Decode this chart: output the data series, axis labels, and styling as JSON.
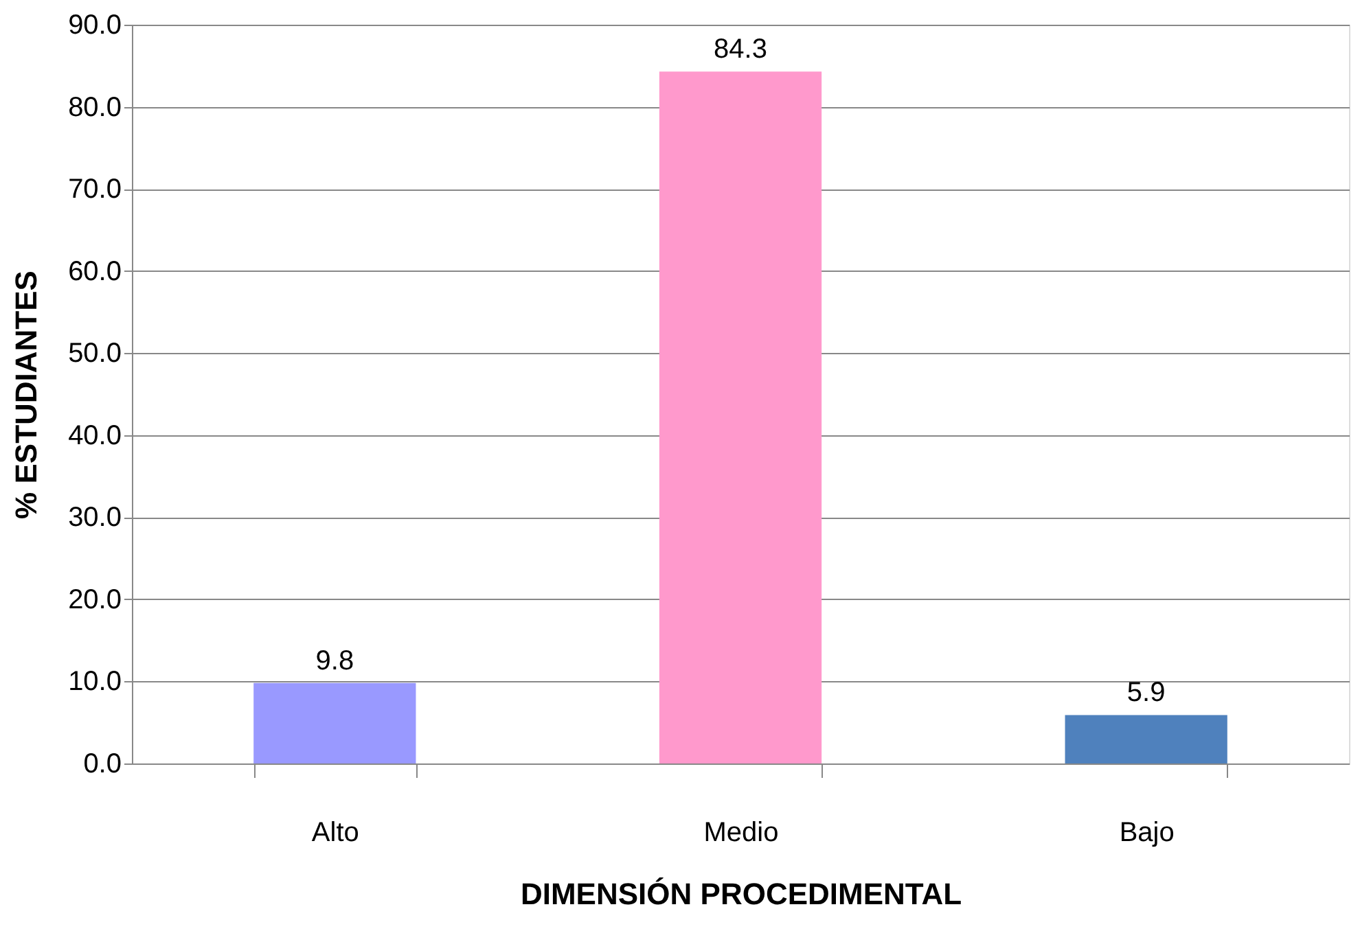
{
  "chart_data": {
    "type": "bar",
    "xlabel": "DIMENSIÓN PROCEDIMENTAL",
    "ylabel": "% ESTUDIANTES",
    "categories": [
      "Alto",
      "Medio",
      "Bajo"
    ],
    "values": [
      9.8,
      84.3,
      5.9
    ],
    "colors": [
      "#9999ff",
      "#ff99cc",
      "#4f81bd"
    ],
    "ylim": [
      0,
      90
    ],
    "yticks": [
      {
        "value": 0,
        "label": "0.0"
      },
      {
        "value": 10,
        "label": "10.0"
      },
      {
        "value": 20,
        "label": "20.0"
      },
      {
        "value": 30,
        "label": "30.0"
      },
      {
        "value": 40,
        "label": "40.0"
      },
      {
        "value": 50,
        "label": "50.0"
      },
      {
        "value": 60,
        "label": "60.0"
      },
      {
        "value": 70,
        "label": "70.0"
      },
      {
        "value": 80,
        "label": "80.0"
      },
      {
        "value": 90,
        "label": "90.0"
      }
    ],
    "grid": "y",
    "data_labels": true
  }
}
